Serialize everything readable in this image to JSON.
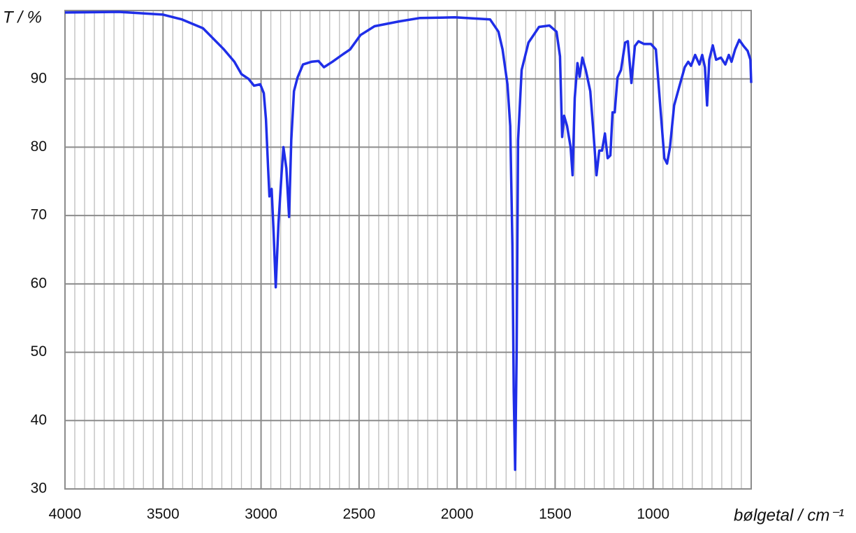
{
  "chart_data": {
    "type": "line",
    "y_label": "T / %",
    "x_label": "bølgetal / cm⁻¹",
    "xlim": [
      4000,
      500
    ],
    "xticks": [
      4000,
      3500,
      3000,
      2500,
      2000,
      1500,
      1000
    ],
    "ylim": [
      30,
      100
    ],
    "yticks": [
      30,
      40,
      50,
      60,
      70,
      80,
      90
    ],
    "grid": true,
    "x": [
      4000,
      3725,
      3500,
      3404,
      3296,
      3189,
      3136,
      3100,
      3064,
      3036,
      3004,
      2986,
      2975,
      2964,
      2957,
      2946,
      2936,
      2925,
      2911,
      2896,
      2886,
      2871,
      2857,
      2846,
      2832,
      2814,
      2786,
      2743,
      2707,
      2679,
      2636,
      2582,
      2546,
      2493,
      2421,
      2296,
      2189,
      2011,
      1832,
      1789,
      1768,
      1743,
      1729,
      1718,
      1711,
      1704,
      1696,
      1689,
      1671,
      1636,
      1582,
      1529,
      1493,
      1475,
      1464,
      1454,
      1439,
      1421,
      1411,
      1400,
      1386,
      1375,
      1361,
      1343,
      1321,
      1304,
      1289,
      1275,
      1261,
      1246,
      1232,
      1218,
      1207,
      1196,
      1182,
      1164,
      1143,
      1129,
      1111,
      1093,
      1075,
      1046,
      1011,
      986,
      964,
      943,
      929,
      914,
      893,
      868,
      839,
      821,
      807,
      786,
      764,
      750,
      736,
      725,
      714,
      696,
      679,
      654,
      632,
      614,
      600,
      582,
      561,
      539,
      518,
      504,
      500
    ],
    "series": [
      {
        "color": "#1f2ee8",
        "values": [
          99.7,
          99.8,
          99.4,
          98.7,
          97.4,
          94.3,
          92.5,
          90.7,
          90.0,
          89.0,
          89.2,
          87.9,
          84.1,
          76.9,
          72.8,
          73.9,
          67.7,
          59.5,
          68.8,
          75.9,
          80.0,
          76.9,
          69.8,
          81.0,
          88.2,
          90.2,
          92.1,
          92.5,
          92.6,
          91.7,
          92.5,
          93.6,
          94.3,
          96.4,
          97.7,
          98.4,
          98.9,
          99.0,
          98.7,
          96.9,
          94.3,
          89.2,
          83.1,
          65.7,
          44.2,
          32.8,
          50.3,
          81.0,
          91.3,
          95.3,
          97.6,
          97.8,
          96.9,
          93.3,
          81.5,
          84.6,
          83.1,
          80.0,
          75.9,
          87.2,
          92.3,
          90.3,
          93.1,
          91.2,
          88.2,
          82.0,
          75.9,
          79.5,
          79.5,
          82.0,
          78.4,
          78.8,
          85.1,
          85.1,
          90.2,
          91.3,
          95.3,
          95.5,
          89.4,
          94.8,
          95.5,
          95.1,
          95.1,
          94.3,
          86.1,
          78.4,
          77.6,
          80.0,
          86.1,
          88.7,
          91.7,
          92.5,
          91.9,
          93.5,
          92.1,
          93.5,
          91.7,
          86.1,
          92.8,
          94.9,
          92.8,
          93.1,
          92.1,
          93.5,
          92.5,
          94.3,
          95.7,
          94.8,
          94.1,
          92.8,
          89.4
        ]
      }
    ]
  }
}
